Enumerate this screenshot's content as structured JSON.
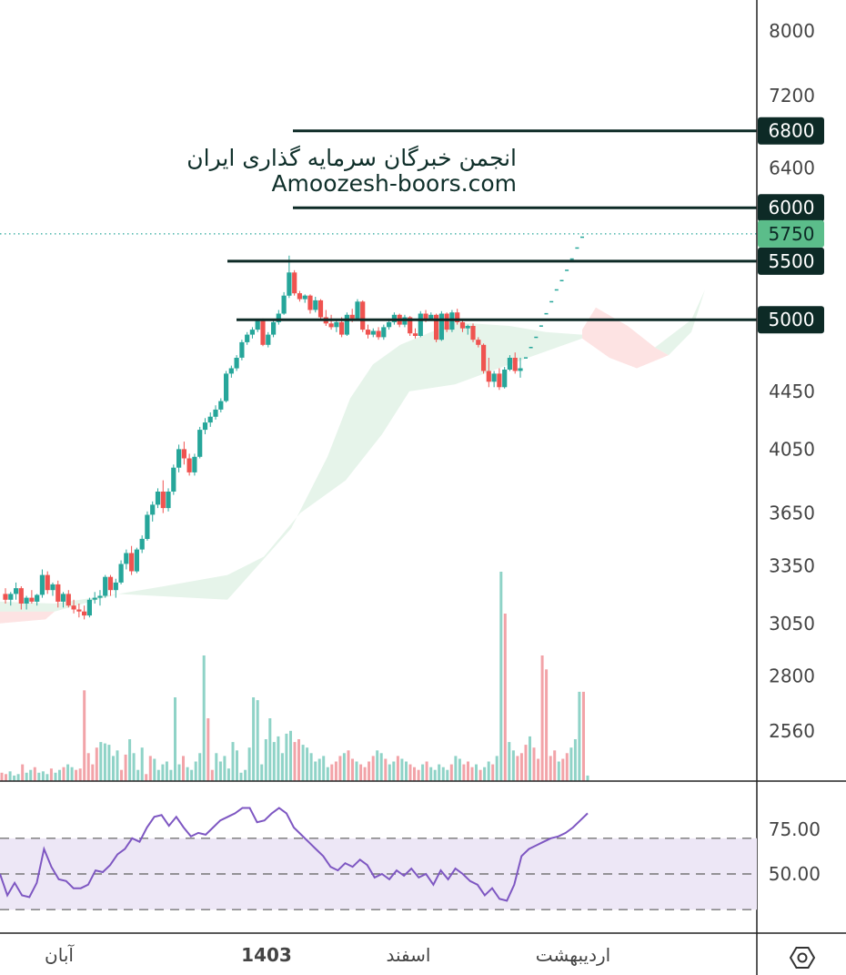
{
  "watermark": {
    "line1": "انجمن خبرگان سرمایه گذاری ایران",
    "line2": "Amoozesh-boors.com"
  },
  "colors": {
    "up": "#26a69a",
    "down": "#ef5350",
    "level_line": "#0d2a26",
    "current_price_badge": "#5bbd8a",
    "cloud_bull": "#e6f4ea",
    "cloud_bear": "#fde3e3",
    "rsi_line": "#7e57c2",
    "rsi_band": "#ede7f6"
  },
  "icons": {
    "settings": "hexagon-settings-icon"
  },
  "chart_data": {
    "type": "candlestick",
    "price_axis": {
      "ticks": [
        8000,
        7200,
        6400,
        4450,
        4050,
        3650,
        3350,
        3050,
        2800,
        2560
      ],
      "tick_labels": [
        "8000",
        "7200",
        "6400",
        "4450",
        "4050",
        "3650",
        "3350",
        "3050",
        "2800",
        "2560"
      ],
      "scale": "log"
    },
    "levels": [
      {
        "price": 6800,
        "label": "6800"
      },
      {
        "price": 6000,
        "label": "6000"
      },
      {
        "price": 5500,
        "label": "5500"
      },
      {
        "price": 5000,
        "label": "5000"
      }
    ],
    "current_price": {
      "value": 5750,
      "label": "5750"
    },
    "time_axis": {
      "labels": [
        "آبان",
        "1403",
        "اسفند",
        "اردیبهشت"
      ]
    },
    "candles_ohlc": [
      [
        3200,
        3230,
        3150,
        3170
      ],
      [
        3170,
        3210,
        3140,
        3200
      ],
      [
        3200,
        3260,
        3170,
        3230
      ],
      [
        3230,
        3240,
        3120,
        3150
      ],
      [
        3150,
        3190,
        3120,
        3180
      ],
      [
        3180,
        3220,
        3150,
        3160
      ],
      [
        3160,
        3200,
        3140,
        3195
      ],
      [
        3195,
        3330,
        3180,
        3300
      ],
      [
        3300,
        3320,
        3200,
        3220
      ],
      [
        3220,
        3260,
        3190,
        3250
      ],
      [
        3250,
        3270,
        3130,
        3160
      ],
      [
        3160,
        3210,
        3130,
        3200
      ],
      [
        3200,
        3220,
        3130,
        3140
      ],
      [
        3140,
        3170,
        3100,
        3120
      ],
      [
        3120,
        3150,
        3080,
        3110
      ],
      [
        3110,
        3140,
        3070,
        3090
      ],
      [
        3090,
        3180,
        3080,
        3170
      ],
      [
        3170,
        3210,
        3150,
        3180
      ],
      [
        3180,
        3220,
        3140,
        3190
      ],
      [
        3190,
        3300,
        3180,
        3290
      ],
      [
        3290,
        3300,
        3190,
        3220
      ],
      [
        3220,
        3280,
        3180,
        3260
      ],
      [
        3260,
        3380,
        3250,
        3360
      ],
      [
        3360,
        3440,
        3330,
        3420
      ],
      [
        3420,
        3460,
        3300,
        3320
      ],
      [
        3320,
        3450,
        3310,
        3440
      ],
      [
        3440,
        3520,
        3420,
        3500
      ],
      [
        3500,
        3660,
        3490,
        3640
      ],
      [
        3640,
        3720,
        3600,
        3700
      ],
      [
        3700,
        3800,
        3680,
        3780
      ],
      [
        3780,
        3850,
        3650,
        3680
      ],
      [
        3680,
        3800,
        3660,
        3780
      ],
      [
        3780,
        3950,
        3760,
        3930
      ],
      [
        3930,
        4080,
        3900,
        4050
      ],
      [
        4050,
        4100,
        3950,
        3990
      ],
      [
        3990,
        4020,
        3880,
        3900
      ],
      [
        3900,
        4020,
        3880,
        4000
      ],
      [
        4000,
        4200,
        3990,
        4180
      ],
      [
        4180,
        4260,
        4150,
        4230
      ],
      [
        4230,
        4300,
        4200,
        4270
      ],
      [
        4270,
        4350,
        4250,
        4320
      ],
      [
        4320,
        4400,
        4300,
        4380
      ],
      [
        4380,
        4600,
        4370,
        4580
      ],
      [
        4580,
        4640,
        4550,
        4620
      ],
      [
        4620,
        4720,
        4600,
        4700
      ],
      [
        4700,
        4840,
        4680,
        4820
      ],
      [
        4820,
        4900,
        4800,
        4880
      ],
      [
        4880,
        4940,
        4850,
        4920
      ],
      [
        4920,
        5000,
        4900,
        4990
      ],
      [
        4990,
        5010,
        4790,
        4800
      ],
      [
        4800,
        4900,
        4780,
        4880
      ],
      [
        4880,
        5000,
        4860,
        4980
      ],
      [
        4980,
        5080,
        4960,
        5050
      ],
      [
        5050,
        5230,
        5040,
        5200
      ],
      [
        5200,
        5550,
        5180,
        5400
      ],
      [
        5400,
        5420,
        5200,
        5220
      ],
      [
        5220,
        5240,
        5150,
        5170
      ],
      [
        5170,
        5210,
        5140,
        5200
      ],
      [
        5200,
        5210,
        5050,
        5080
      ],
      [
        5080,
        5190,
        5060,
        5160
      ],
      [
        5160,
        5170,
        5000,
        5020
      ],
      [
        5020,
        5080,
        4950,
        4970
      ],
      [
        4970,
        5040,
        4920,
        4940
      ],
      [
        4940,
        5000,
        4900,
        4980
      ],
      [
        4980,
        5020,
        4860,
        4880
      ],
      [
        4880,
        5060,
        4870,
        5040
      ],
      [
        5040,
        5090,
        4980,
        5010
      ],
      [
        5010,
        5170,
        5000,
        5150
      ],
      [
        5150,
        5160,
        4900,
        4920
      ],
      [
        4920,
        4960,
        4850,
        4880
      ],
      [
        4880,
        4930,
        4860,
        4910
      ],
      [
        4910,
        4940,
        4840,
        4860
      ],
      [
        4860,
        4960,
        4840,
        4940
      ],
      [
        4940,
        5010,
        4920,
        4980
      ],
      [
        4980,
        5060,
        4960,
        5040
      ],
      [
        5040,
        5050,
        4940,
        4960
      ],
      [
        4960,
        5040,
        4940,
        5020
      ],
      [
        5020,
        5030,
        4870,
        4890
      ],
      [
        4890,
        4930,
        4850,
        4870
      ],
      [
        4870,
        5070,
        4860,
        5050
      ],
      [
        5050,
        5080,
        4980,
        5000
      ],
      [
        5000,
        5060,
        4990,
        5040
      ],
      [
        5040,
        5050,
        4820,
        4840
      ],
      [
        4840,
        5070,
        4830,
        5050
      ],
      [
        5050,
        5060,
        4900,
        4920
      ],
      [
        4920,
        5080,
        4900,
        5060
      ],
      [
        5060,
        5090,
        4960,
        4980
      ],
      [
        4980,
        5000,
        4900,
        4930
      ],
      [
        4930,
        4960,
        4880,
        4950
      ],
      [
        4950,
        4970,
        4820,
        4840
      ],
      [
        4840,
        4860,
        4780,
        4800
      ],
      [
        4800,
        4810,
        4580,
        4600
      ],
      [
        4600,
        4700,
        4480,
        4520
      ],
      [
        4520,
        4600,
        4480,
        4580
      ],
      [
        4580,
        4620,
        4460,
        4480
      ],
      [
        4480,
        4630,
        4470,
        4610
      ],
      [
        4610,
        4720,
        4600,
        4700
      ],
      [
        4700,
        4740,
        4580,
        4600
      ],
      [
        4600,
        4700,
        4550,
        4620
      ]
    ],
    "projection_prices": [
      4700,
      4780,
      4860,
      4950,
      5050,
      5150,
      5250,
      5330,
      5420,
      5520,
      5620,
      5720
    ],
    "volumes": [
      6,
      5,
      7,
      4,
      5,
      12,
      6,
      8,
      10,
      6,
      7,
      5,
      9,
      6,
      8,
      10,
      12,
      10,
      8,
      9,
      65,
      20,
      12,
      24,
      28,
      27,
      26,
      18,
      22,
      8,
      19,
      30,
      20,
      8,
      24,
      5,
      18,
      16,
      8,
      12,
      14,
      8,
      60,
      12,
      18,
      10,
      8,
      14,
      20,
      90,
      45,
      8,
      20,
      14,
      18,
      9,
      28,
      22,
      6,
      8,
      24,
      60,
      58,
      12,
      30,
      45,
      28,
      32,
      20,
      34,
      36,
      28,
      30,
      26,
      24,
      20,
      14,
      16,
      18,
      10,
      12,
      14,
      18,
      20,
      22,
      16,
      14,
      12,
      10,
      14,
      18,
      22,
      20,
      16,
      12,
      14,
      18,
      16,
      14,
      12,
      10,
      8,
      12,
      14,
      10,
      8,
      12,
      10,
      8,
      12,
      18,
      16,
      12,
      14,
      10,
      12,
      8,
      10,
      14,
      12,
      18,
      150,
      120,
      28,
      22,
      18,
      20,
      26,
      32,
      24,
      16,
      90,
      80,
      18,
      22,
      14,
      16,
      20,
      24,
      30,
      64,
      64,
      4
    ],
    "rsi": {
      "ticks": [
        75.0,
        50.0
      ],
      "tick_labels": [
        "75.00",
        "50.00"
      ],
      "band_range": [
        30,
        70
      ],
      "values": [
        50,
        38,
        45,
        38,
        37,
        45,
        64,
        54,
        47,
        46,
        42,
        42,
        44,
        52,
        51,
        55,
        61,
        64,
        70,
        68,
        76,
        82,
        83,
        77,
        82,
        76,
        71,
        73,
        72,
        76,
        80,
        82,
        84,
        87,
        87,
        79,
        80,
        84,
        87,
        84,
        76,
        72,
        68,
        64,
        60,
        54,
        52,
        56,
        54,
        58,
        55,
        48,
        50,
        47,
        52,
        49,
        53,
        48,
        50,
        44,
        52,
        47,
        53,
        50,
        46,
        44,
        38,
        42,
        36,
        35,
        44,
        60,
        64,
        66,
        68,
        70,
        71,
        73,
        76,
        80,
        84
      ]
    }
  }
}
